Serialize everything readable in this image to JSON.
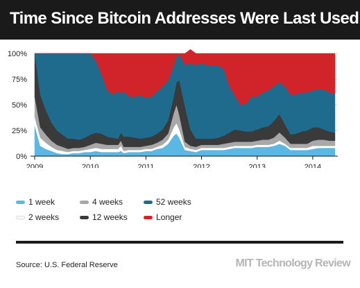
{
  "title": "Time Since Bitcoin Addresses Were Last Used",
  "source": "Source: U.S. Federal Reserve",
  "logo": "MIT Technology Review",
  "chart_data": {
    "type": "area",
    "stacked": true,
    "title": "Time Since Bitcoin Addresses Were Last Used",
    "xlabel": "",
    "ylabel": "",
    "x": [
      2009.0,
      2009.1,
      2009.2,
      2009.3,
      2009.4,
      2009.5,
      2009.6,
      2009.7,
      2009.8,
      2009.9,
      2010.0,
      2010.1,
      2010.2,
      2010.3,
      2010.4,
      2010.5,
      2010.55,
      2010.6,
      2010.7,
      2010.8,
      2010.9,
      2011.0,
      2011.1,
      2011.2,
      2011.3,
      2011.4,
      2011.5,
      2011.55,
      2011.6,
      2011.7,
      2011.8,
      2011.9,
      2012.0,
      2012.1,
      2012.2,
      2012.3,
      2012.4,
      2012.5,
      2012.6,
      2012.7,
      2012.8,
      2012.9,
      2013.0,
      2013.1,
      2013.2,
      2013.3,
      2013.4,
      2013.5,
      2013.6,
      2013.7,
      2013.8,
      2013.9,
      2014.0,
      2014.1,
      2014.2,
      2014.3,
      2014.4
    ],
    "xlim": [
      2009.0,
      2014.45
    ],
    "xticks": [
      "2009",
      "2010",
      "2011",
      "2012",
      "2013",
      "2014"
    ],
    "ylim": [
      0,
      100
    ],
    "yticks": [
      "0%",
      "25%",
      "50%",
      "75%",
      "100%"
    ],
    "grid": true,
    "legend_position": "bottom",
    "series": [
      {
        "name": "1 week",
        "color": "#5bb8e4",
        "values": [
          30,
          10,
          7,
          5,
          3,
          2,
          2,
          3,
          3,
          4,
          4,
          5,
          4,
          4,
          4,
          4,
          5,
          3,
          4,
          4,
          4,
          5,
          5,
          7,
          8,
          12,
          20,
          22,
          18,
          6,
          5,
          4,
          6,
          6,
          6,
          6,
          6,
          7,
          8,
          8,
          8,
          8,
          9,
          9,
          9,
          10,
          12,
          10,
          6,
          6,
          6,
          6,
          7,
          8,
          8,
          8,
          8
        ]
      },
      {
        "name": "2 weeks",
        "color": "#ffffff",
        "values": [
          8,
          8,
          6,
          4,
          3,
          3,
          2,
          2,
          2,
          2,
          3,
          3,
          3,
          3,
          3,
          3,
          5,
          2,
          2,
          2,
          2,
          2,
          2,
          2,
          3,
          4,
          8,
          10,
          8,
          3,
          2,
          2,
          2,
          2,
          2,
          2,
          2,
          2,
          2,
          2,
          2,
          2,
          2,
          2,
          2,
          2,
          3,
          2,
          2,
          2,
          2,
          2,
          3,
          2,
          2,
          2,
          2
        ]
      },
      {
        "name": "4 weeks",
        "color": "#a8a8a8",
        "values": [
          20,
          10,
          8,
          6,
          5,
          4,
          3,
          3,
          3,
          3,
          4,
          5,
          5,
          4,
          4,
          4,
          5,
          4,
          3,
          3,
          3,
          3,
          4,
          4,
          5,
          6,
          14,
          18,
          14,
          5,
          3,
          3,
          3,
          3,
          3,
          3,
          4,
          4,
          4,
          4,
          4,
          4,
          4,
          5,
          5,
          6,
          8,
          6,
          4,
          4,
          4,
          4,
          5,
          6,
          6,
          5,
          5
        ]
      },
      {
        "name": "12 weeks",
        "color": "#3a3a3a",
        "values": [
          42,
          32,
          24,
          18,
          14,
          12,
          10,
          9,
          8,
          9,
          10,
          10,
          10,
          8,
          7,
          6,
          8,
          10,
          10,
          9,
          8,
          8,
          8,
          9,
          10,
          13,
          16,
          22,
          34,
          35,
          16,
          8,
          6,
          6,
          6,
          7,
          8,
          10,
          12,
          11,
          10,
          10,
          11,
          12,
          13,
          16,
          18,
          13,
          9,
          10,
          12,
          13,
          13,
          12,
          10,
          9,
          8
        ]
      },
      {
        "name": "52 weeks",
        "color": "#1f6b8e",
        "values": [
          0,
          40,
          55,
          67,
          75,
          79,
          83,
          83,
          84,
          82,
          79,
          70,
          58,
          46,
          42,
          46,
          38,
          44,
          39,
          40,
          42,
          39,
          39,
          41,
          42,
          39,
          30,
          25,
          25,
          40,
          64,
          72,
          73,
          72,
          71,
          70,
          65,
          45,
          33,
          25,
          27,
          34,
          32,
          34,
          35,
          34,
          31,
          37,
          39,
          38,
          38,
          37,
          36,
          37,
          39,
          38,
          38
        ]
      },
      {
        "name": "Longer",
        "color": "#d1242a",
        "values": [
          0,
          0,
          0,
          0,
          0,
          0,
          0,
          0,
          0,
          0,
          0,
          7,
          20,
          35,
          40,
          37,
          39,
          37,
          42,
          42,
          41,
          43,
          42,
          37,
          32,
          26,
          12,
          3,
          1,
          11,
          14,
          11,
          10,
          11,
          12,
          12,
          15,
          32,
          41,
          50,
          49,
          42,
          42,
          38,
          36,
          32,
          28,
          32,
          40,
          40,
          38,
          38,
          36,
          35,
          35,
          38,
          39
        ]
      }
    ]
  }
}
